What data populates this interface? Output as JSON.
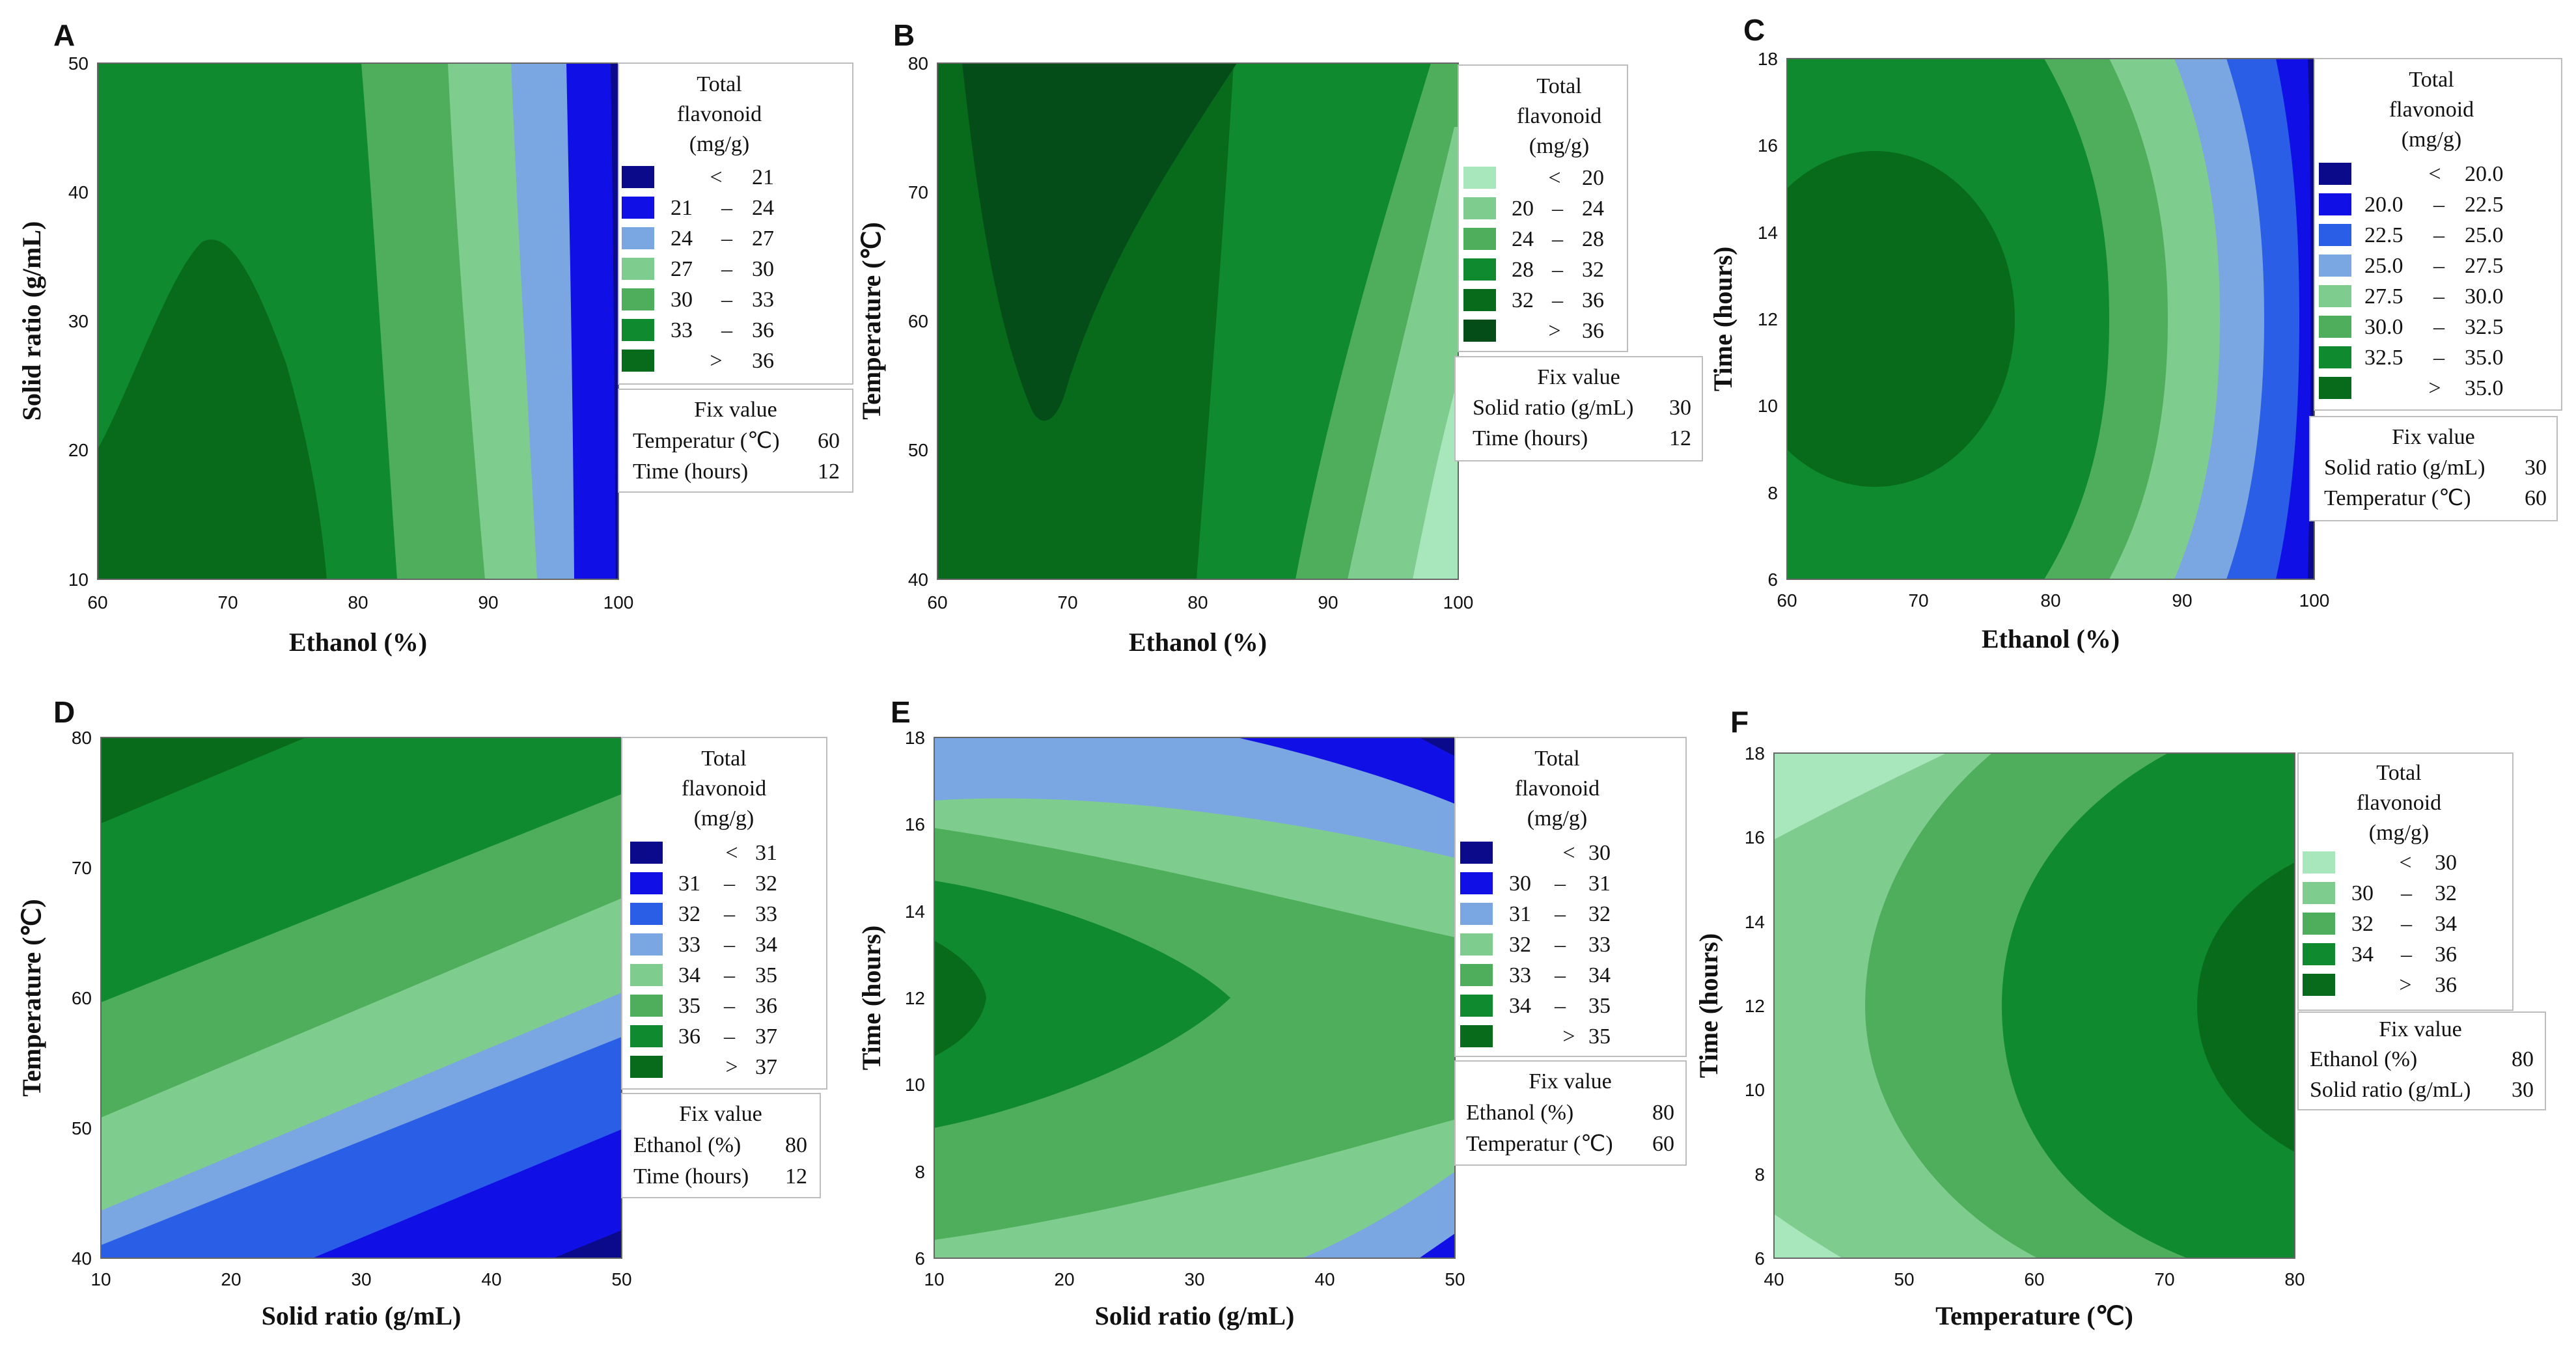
{
  "colors": {
    "navy": "#0a0a8a",
    "blue": "#1010e6",
    "midblue": "#2a5ee6",
    "lightblue": "#7aa7e2",
    "lightgreen": "#7fcd8e",
    "pale": "#a8e6bb",
    "medgreen": "#4fae5c",
    "green": "#0f8a2f",
    "darkgreen": "#086b1c",
    "darkest": "#044d18"
  },
  "chart_data": [
    {
      "panel": "A",
      "type": "contour",
      "xlabel": "Ethanol (%)",
      "ylabel": "Solid ratio (g/mL)",
      "xlim": [
        60,
        100
      ],
      "ylim": [
        10,
        50
      ],
      "xticks": [
        "60",
        "70",
        "80",
        "90",
        "100"
      ],
      "yticks": [
        "10",
        "20",
        "30",
        "40",
        "50"
      ],
      "legend": {
        "title": [
          "Total",
          "flavonoid",
          "(mg/g)"
        ],
        "entries": [
          {
            "lo": "<",
            "hi": "21",
            "color": "#0a0a8a"
          },
          {
            "lo": "21",
            "hi": "24",
            "color": "#1010e6"
          },
          {
            "lo": "24",
            "hi": "27",
            "color": "#7aa7e2"
          },
          {
            "lo": "27",
            "hi": "30",
            "color": "#7fcd8e"
          },
          {
            "lo": "30",
            "hi": "33",
            "color": "#4fae5c"
          },
          {
            "lo": "33",
            "hi": "36",
            "color": "#0f8a2f"
          },
          {
            "lo": ">",
            "hi": "36",
            "color": "#086b1c"
          }
        ]
      },
      "fixed": {
        "title": "Fix value",
        "rows": [
          {
            "name": "Temperatur (℃)",
            "value": "60"
          },
          {
            "name": "Time (hours)",
            "value": "12"
          }
        ]
      }
    },
    {
      "panel": "B",
      "type": "contour",
      "xlabel": "Ethanol (%)",
      "ylabel": "Temperature (℃)",
      "xlim": [
        60,
        100
      ],
      "ylim": [
        40,
        80
      ],
      "xticks": [
        "60",
        "70",
        "80",
        "90",
        "100"
      ],
      "yticks": [
        "40",
        "50",
        "60",
        "70",
        "80"
      ],
      "legend": {
        "title": [
          "Total",
          "flavonoid",
          "(mg/g)"
        ],
        "entries": [
          {
            "lo": "<",
            "hi": "20",
            "color": "#a8e6bb"
          },
          {
            "lo": "20",
            "hi": "24",
            "color": "#7fcd8e"
          },
          {
            "lo": "24",
            "hi": "28",
            "color": "#4fae5c"
          },
          {
            "lo": "28",
            "hi": "32",
            "color": "#0f8a2f"
          },
          {
            "lo": "32",
            "hi": "36",
            "color": "#086b1c"
          },
          {
            "lo": ">",
            "hi": "36",
            "color": "#044d18"
          }
        ]
      },
      "fixed": {
        "title": "Fix value",
        "rows": [
          {
            "name": "Solid ratio (g/mL)",
            "value": "30"
          },
          {
            "name": "Time (hours)",
            "value": "12"
          }
        ]
      }
    },
    {
      "panel": "C",
      "type": "contour",
      "xlabel": "Ethanol (%)",
      "ylabel": "Time (hours)",
      "xlim": [
        60,
        100
      ],
      "ylim": [
        6,
        18
      ],
      "xticks": [
        "60",
        "70",
        "80",
        "90",
        "100"
      ],
      "yticks": [
        "6",
        "8",
        "10",
        "12",
        "14",
        "16",
        "18"
      ],
      "legend": {
        "title": [
          "Total",
          "flavonoid",
          "(mg/g)"
        ],
        "entries": [
          {
            "lo": "<",
            "hi": "20.0",
            "color": "#0a0a8a"
          },
          {
            "lo": "20.0",
            "hi": "22.5",
            "color": "#1010e6"
          },
          {
            "lo": "22.5",
            "hi": "25.0",
            "color": "#2a5ee6"
          },
          {
            "lo": "25.0",
            "hi": "27.5",
            "color": "#7aa7e2"
          },
          {
            "lo": "27.5",
            "hi": "30.0",
            "color": "#7fcd8e"
          },
          {
            "lo": "30.0",
            "hi": "32.5",
            "color": "#4fae5c"
          },
          {
            "lo": "32.5",
            "hi": "35.0",
            "color": "#0f8a2f"
          },
          {
            "lo": ">",
            "hi": "35.0",
            "color": "#086b1c"
          }
        ]
      },
      "fixed": {
        "title": "Fix value",
        "rows": [
          {
            "name": "Solid ratio (g/mL)",
            "value": "30"
          },
          {
            "name": "Temperatur (℃)",
            "value": "60"
          }
        ]
      }
    },
    {
      "panel": "D",
      "type": "contour",
      "xlabel": "Solid ratio (g/mL)",
      "ylabel": "Temperature (℃)",
      "xlim": [
        10,
        50
      ],
      "ylim": [
        40,
        80
      ],
      "xticks": [
        "10",
        "20",
        "30",
        "40",
        "50"
      ],
      "yticks": [
        "40",
        "50",
        "60",
        "70",
        "80"
      ],
      "legend": {
        "title": [
          "Total",
          "flavonoid",
          "(mg/g)"
        ],
        "entries": [
          {
            "lo": "<",
            "hi": "31",
            "color": "#0a0a8a"
          },
          {
            "lo": "31",
            "hi": "32",
            "color": "#1010e6"
          },
          {
            "lo": "32",
            "hi": "33",
            "color": "#2a5ee6"
          },
          {
            "lo": "33",
            "hi": "34",
            "color": "#7aa7e2"
          },
          {
            "lo": "34",
            "hi": "35",
            "color": "#7fcd8e"
          },
          {
            "lo": "35",
            "hi": "36",
            "color": "#4fae5c"
          },
          {
            "lo": "36",
            "hi": "37",
            "color": "#0f8a2f"
          },
          {
            "lo": ">",
            "hi": "37",
            "color": "#086b1c"
          }
        ]
      },
      "fixed": {
        "title": "Fix value",
        "rows": [
          {
            "name": "Ethanol (%)",
            "value": "80"
          },
          {
            "name": "Time (hours)",
            "value": "12"
          }
        ]
      }
    },
    {
      "panel": "E",
      "type": "contour",
      "xlabel": "Solid ratio (g/mL)",
      "ylabel": "Time (hours)",
      "xlim": [
        10,
        50
      ],
      "ylim": [
        6,
        18
      ],
      "xticks": [
        "10",
        "20",
        "30",
        "40",
        "50"
      ],
      "yticks": [
        "6",
        "8",
        "10",
        "12",
        "14",
        "16",
        "18"
      ],
      "legend": {
        "title": [
          "Total",
          "flavonoid",
          "(mg/g)"
        ],
        "entries": [
          {
            "lo": "<",
            "hi": "30",
            "color": "#0a0a8a"
          },
          {
            "lo": "30",
            "hi": "31",
            "color": "#1010e6"
          },
          {
            "lo": "31",
            "hi": "32",
            "color": "#7aa7e2"
          },
          {
            "lo": "32",
            "hi": "33",
            "color": "#7fcd8e"
          },
          {
            "lo": "33",
            "hi": "34",
            "color": "#4fae5c"
          },
          {
            "lo": "34",
            "hi": "35",
            "color": "#0f8a2f"
          },
          {
            "lo": ">",
            "hi": "35",
            "color": "#086b1c"
          }
        ]
      },
      "fixed": {
        "title": "Fix value",
        "rows": [
          {
            "name": "Ethanol (%)",
            "value": "80"
          },
          {
            "name": "Temperatur (℃)",
            "value": "60"
          }
        ]
      }
    },
    {
      "panel": "F",
      "type": "contour",
      "xlabel": "Temperature (℃)",
      "ylabel": "Time (hours)",
      "xlim": [
        40,
        80
      ],
      "ylim": [
        6,
        18
      ],
      "xticks": [
        "40",
        "50",
        "60",
        "70",
        "80"
      ],
      "yticks": [
        "6",
        "8",
        "10",
        "12",
        "14",
        "16",
        "18"
      ],
      "legend": {
        "title": [
          "Total",
          "flavonoid",
          "(mg/g)"
        ],
        "entries": [
          {
            "lo": "<",
            "hi": "30",
            "color": "#a8e6bb"
          },
          {
            "lo": "30",
            "hi": "32",
            "color": "#7fcd8e"
          },
          {
            "lo": "32",
            "hi": "34",
            "color": "#4fae5c"
          },
          {
            "lo": "34",
            "hi": "36",
            "color": "#0f8a2f"
          },
          {
            "lo": ">",
            "hi": "36",
            "color": "#086b1c"
          }
        ]
      },
      "fixed": {
        "title": "Fix value",
        "rows": [
          {
            "name": "Ethanol (%)",
            "value": "80"
          },
          {
            "name": "Solid ratio (g/mL)",
            "value": "30"
          }
        ]
      }
    }
  ]
}
